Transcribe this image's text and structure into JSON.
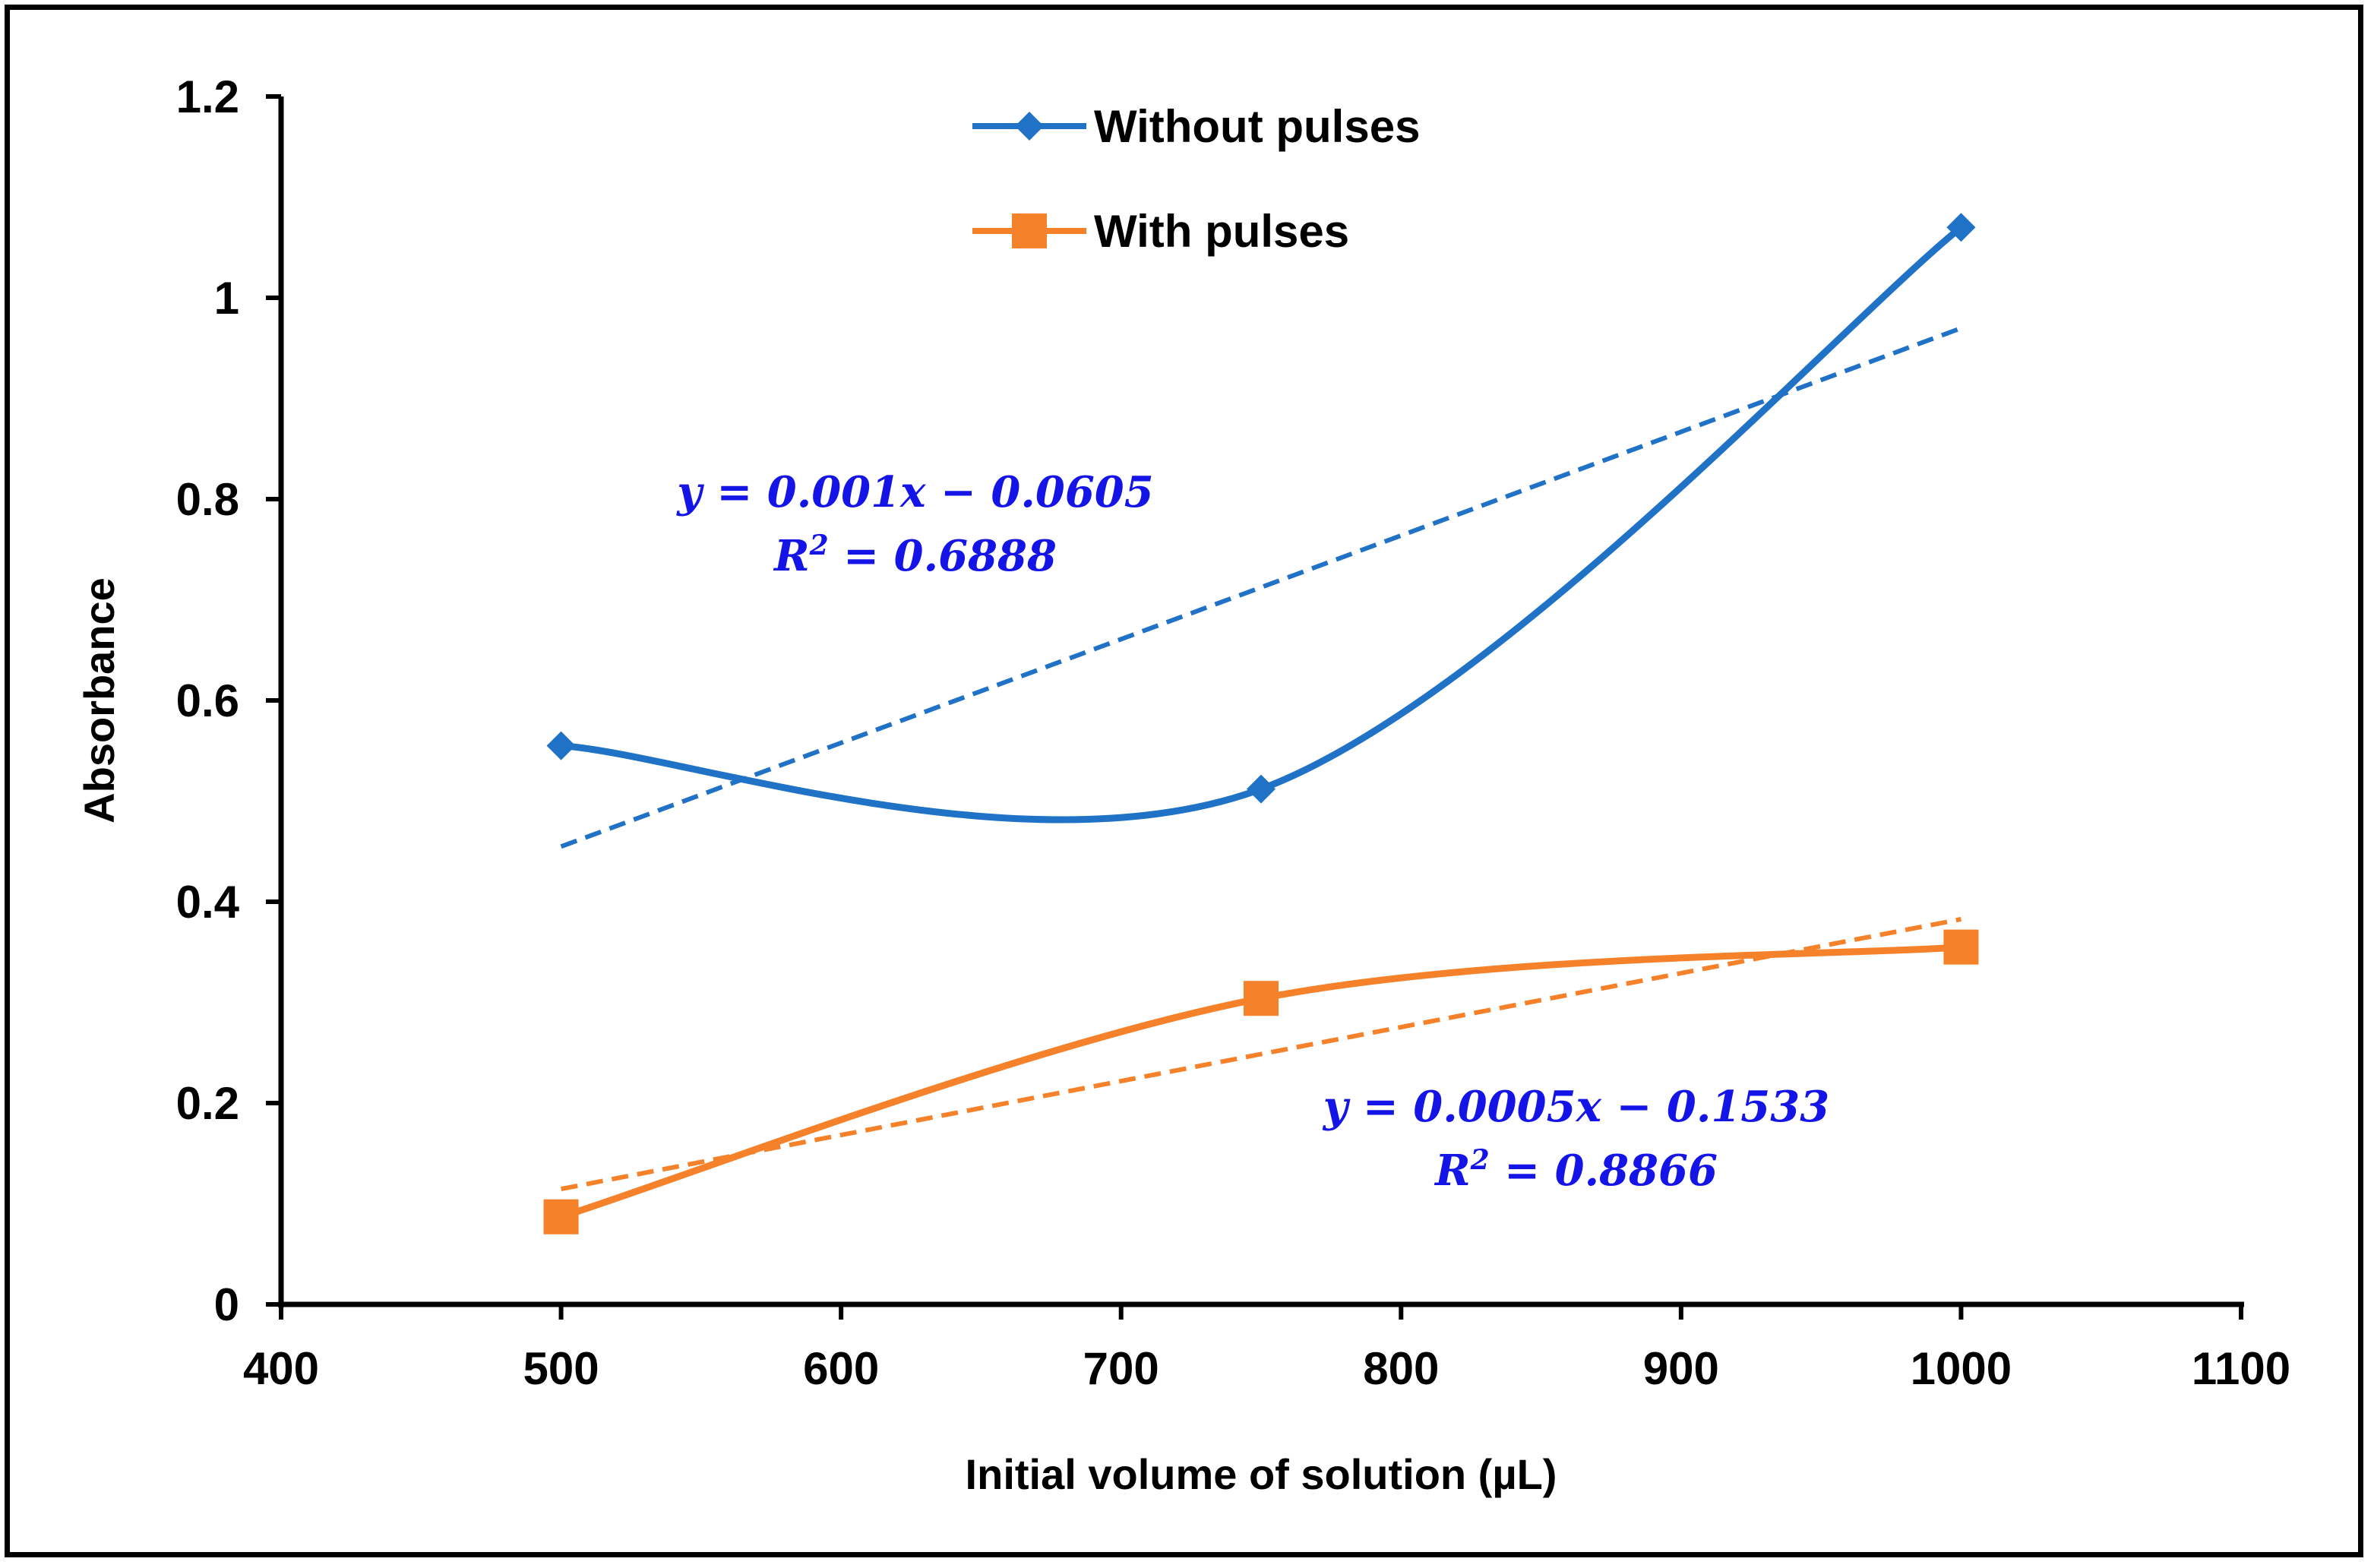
{
  "chart_data": {
    "type": "line",
    "title": "",
    "xlabel": "Initial volume of solution (µL)",
    "ylabel": "Absorbance",
    "xlim": [
      400,
      1100
    ],
    "ylim": [
      0,
      1.2
    ],
    "x_ticks": [
      "400",
      "500",
      "600",
      "700",
      "800",
      "900",
      "1000",
      "1100"
    ],
    "y_ticks": [
      "0",
      "0.2",
      "0.4",
      "0.6",
      "0.8",
      "1",
      "1.2"
    ],
    "grid": false,
    "legend_position": "top-center",
    "series": [
      {
        "name": "Without pulses",
        "color": "#1f72c6",
        "marker": "diamond",
        "x": [
          500,
          750,
          1000
        ],
        "y": [
          0.555,
          0.512,
          1.07
        ],
        "trendline": {
          "type": "linear",
          "x_range": [
            500,
            1000
          ],
          "equation": "y = 0.001x − 0.0605",
          "r2_label": "R",
          "r2_exp": "2",
          "r2_value": " = 0.6888"
        }
      },
      {
        "name": "With pulses",
        "color": "#f5822a",
        "marker": "square",
        "x": [
          500,
          750,
          1000
        ],
        "y": [
          0.087,
          0.304,
          0.355
        ],
        "trendline": {
          "type": "linear",
          "x_range": [
            500,
            1000
          ],
          "equation": "y = 0.0005x − 0.1533",
          "r2_label": "R",
          "r2_exp": "2",
          "r2_value": " = 0.8866"
        }
      }
    ]
  }
}
